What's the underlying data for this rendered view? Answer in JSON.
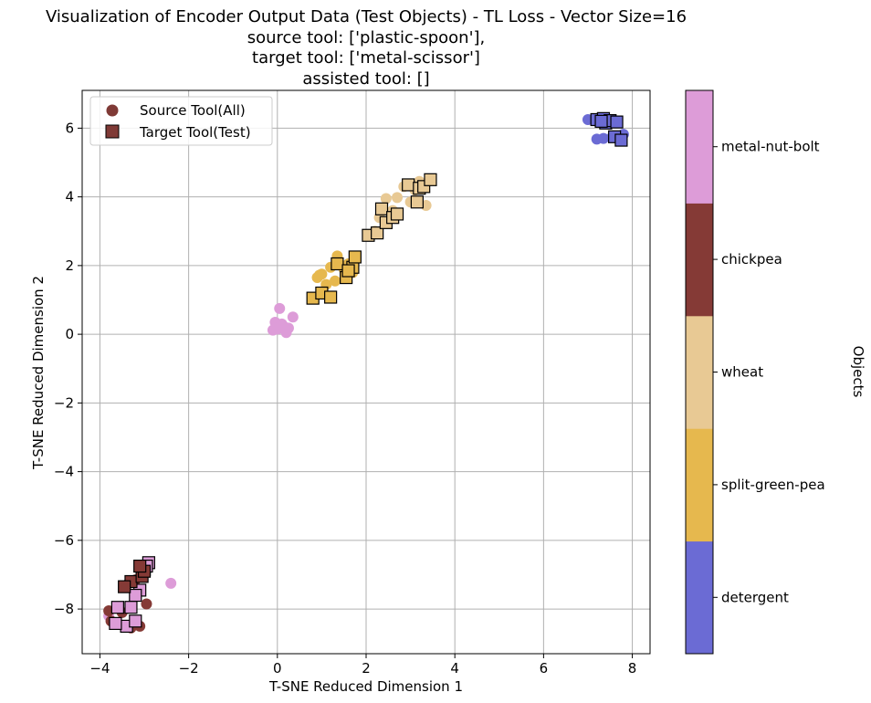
{
  "chart_data": {
    "type": "scatter",
    "title_lines": [
      "Visualization of Encoder Output Data (Test Objects) - TL Loss - Vector Size=16",
      "source tool: ['plastic-spoon'],",
      "target tool: ['metal-scissor']",
      "assisted tool: []"
    ],
    "xlabel": "T-SNE Reduced Dimension 1",
    "ylabel": "T-SNE Reduced Dimension 2",
    "xlim": [
      -4.4,
      8.4
    ],
    "ylim": [
      -9.3,
      7.1
    ],
    "xticks": [
      -4,
      -2,
      0,
      2,
      4,
      6,
      8
    ],
    "xtick_labels": [
      "−4",
      "−2",
      "0",
      "2",
      "4",
      "6",
      "8"
    ],
    "yticks": [
      -8,
      -6,
      -4,
      -2,
      0,
      2,
      4,
      6
    ],
    "ytick_labels": [
      "−8",
      "−6",
      "−4",
      "−2",
      "0",
      "2",
      "4",
      "6"
    ],
    "grid": true,
    "legend": {
      "placement": "upper-left",
      "entries": [
        {
          "label": "Source Tool(All)",
          "marker": "circle",
          "color": "#7f3a36"
        },
        {
          "label": "Target Tool(Test)",
          "marker": "square",
          "color": "#7f3a36"
        }
      ]
    },
    "colorbar": {
      "label": "Objects",
      "categories": [
        "detergent",
        "split-green-pea",
        "wheat",
        "chickpea",
        "metal-nut-bolt"
      ],
      "colors": [
        "#6b6bd4",
        "#e6b84e",
        "#e8c994",
        "#853a36",
        "#dd9cd8"
      ]
    },
    "series": [
      {
        "object": "detergent",
        "color": "#6b6bd4",
        "source": [
          [
            7.0,
            6.25
          ],
          [
            7.15,
            6.22
          ],
          [
            7.25,
            6.3
          ],
          [
            7.35,
            5.7
          ],
          [
            7.45,
            6.15
          ],
          [
            7.55,
            5.75
          ],
          [
            7.7,
            5.72
          ],
          [
            7.8,
            5.82
          ],
          [
            7.4,
            6.2
          ],
          [
            7.2,
            5.68
          ]
        ],
        "target": [
          [
            7.2,
            6.25
          ],
          [
            7.35,
            6.28
          ],
          [
            7.4,
            6.15
          ],
          [
            7.5,
            6.22
          ],
          [
            7.65,
            6.18
          ],
          [
            7.6,
            5.75
          ],
          [
            7.75,
            5.65
          ],
          [
            7.3,
            6.2
          ]
        ]
      },
      {
        "object": "split-green-pea",
        "color": "#e6b84e",
        "source": [
          [
            0.95,
            1.72
          ],
          [
            1.0,
            1.75
          ],
          [
            1.1,
            1.45
          ],
          [
            1.2,
            1.95
          ],
          [
            1.3,
            1.55
          ],
          [
            1.35,
            2.28
          ],
          [
            1.5,
            1.9
          ],
          [
            1.6,
            2.05
          ],
          [
            1.7,
            1.8
          ],
          [
            0.9,
            1.65
          ]
        ],
        "target": [
          [
            0.8,
            1.05
          ],
          [
            1.0,
            1.2
          ],
          [
            1.2,
            1.08
          ],
          [
            1.35,
            2.05
          ],
          [
            1.55,
            1.65
          ],
          [
            1.7,
            1.95
          ],
          [
            1.75,
            2.25
          ],
          [
            1.6,
            1.85
          ]
        ]
      },
      {
        "object": "wheat",
        "color": "#e8c994",
        "source": [
          [
            2.3,
            3.4
          ],
          [
            2.45,
            3.95
          ],
          [
            2.7,
            3.98
          ],
          [
            2.85,
            4.3
          ],
          [
            3.0,
            3.85
          ],
          [
            3.2,
            4.45
          ],
          [
            3.35,
            3.75
          ],
          [
            2.6,
            3.6
          ],
          [
            2.2,
            3.0
          ],
          [
            3.1,
            4.2
          ]
        ],
        "target": [
          [
            2.05,
            2.88
          ],
          [
            2.25,
            2.95
          ],
          [
            2.35,
            3.65
          ],
          [
            2.45,
            3.25
          ],
          [
            2.6,
            3.4
          ],
          [
            2.7,
            3.5
          ],
          [
            2.95,
            4.35
          ],
          [
            3.15,
            3.85
          ],
          [
            3.2,
            4.25
          ],
          [
            3.3,
            4.3
          ],
          [
            3.45,
            4.5
          ]
        ]
      },
      {
        "object": "metal-nut-bolt",
        "color": "#dd9cd8",
        "source": [
          [
            0.05,
            0.75
          ],
          [
            -0.05,
            0.35
          ],
          [
            0.0,
            0.15
          ],
          [
            0.1,
            0.3
          ],
          [
            0.15,
            0.22
          ],
          [
            0.25,
            0.18
          ],
          [
            0.35,
            0.5
          ],
          [
            -0.1,
            0.12
          ],
          [
            0.2,
            0.05
          ],
          [
            0.05,
            0.2
          ],
          [
            -2.4,
            -7.25
          ],
          [
            -3.8,
            -8.2
          ]
        ],
        "target": [
          [
            -2.9,
            -6.65
          ],
          [
            -3.0,
            -6.85
          ],
          [
            -3.1,
            -7.45
          ],
          [
            -3.2,
            -7.6
          ],
          [
            -3.3,
            -7.95
          ],
          [
            -3.4,
            -8.5
          ],
          [
            -3.6,
            -7.95
          ],
          [
            -3.65,
            -8.42
          ],
          [
            -3.2,
            -8.35
          ],
          [
            -2.95,
            -6.75
          ]
        ]
      },
      {
        "object": "chickpea",
        "color": "#853a36",
        "source": [
          [
            -3.8,
            -8.05
          ],
          [
            -3.75,
            -8.35
          ],
          [
            -3.3,
            -8.55
          ],
          [
            -3.1,
            -8.5
          ],
          [
            -2.95,
            -7.85
          ],
          [
            -3.4,
            -7.3
          ],
          [
            -3.2,
            -7.15
          ],
          [
            -3.5,
            -8.1
          ]
        ],
        "target": [
          [
            -3.3,
            -7.2
          ],
          [
            -3.45,
            -7.35
          ],
          [
            -3.05,
            -7.05
          ],
          [
            -3.0,
            -6.9
          ],
          [
            -3.1,
            -6.75
          ]
        ]
      }
    ]
  }
}
